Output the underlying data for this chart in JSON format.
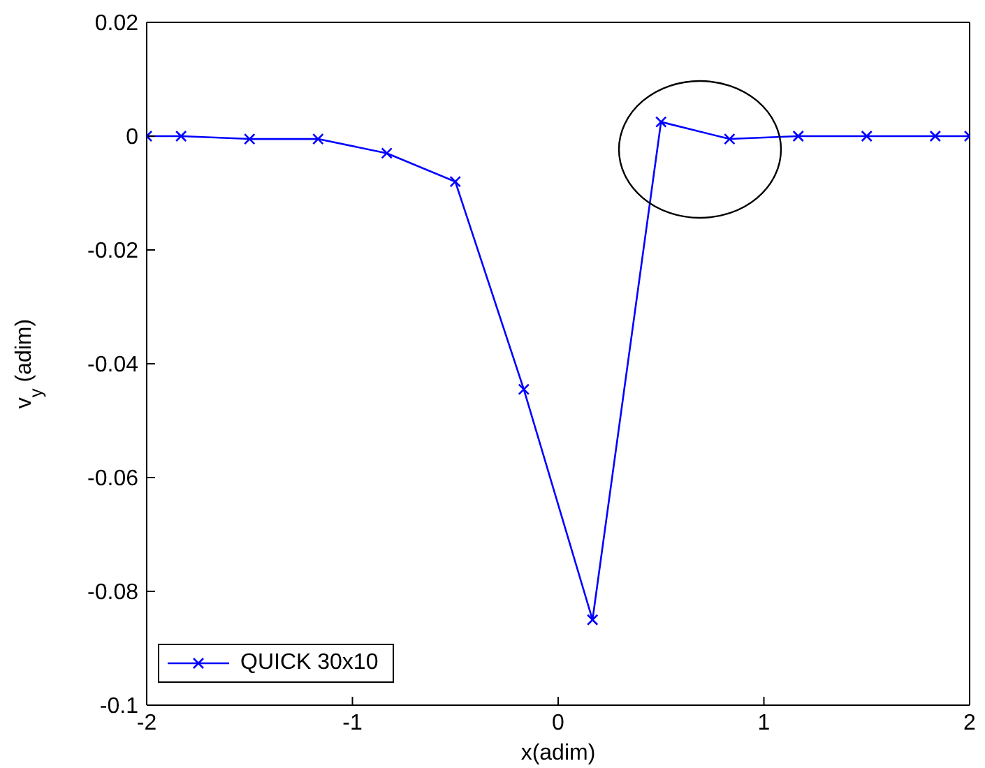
{
  "chart_data": {
    "type": "line",
    "xlabel": "x(adim)",
    "ylabel": "v$_{y}$ (adim)",
    "x": [
      -2,
      -1.833,
      -1.5,
      -1.167,
      -0.833,
      -0.5,
      -0.167,
      0.167,
      0.5,
      0.833,
      1.167,
      1.5,
      1.833,
      2
    ],
    "series": [
      {
        "name": "QUICK 30x10",
        "color": "#0000ff",
        "values": [
          0,
          0,
          -0.0005,
          -0.0005,
          -0.003,
          -0.008,
          -0.0445,
          -0.085,
          0.0025,
          -0.0005,
          0,
          0,
          0,
          0
        ]
      }
    ],
    "xlim": [
      -2,
      2
    ],
    "xticks": [
      -2,
      -1,
      0,
      1,
      2
    ],
    "ylim": [
      -0.1,
      0.02
    ],
    "yticks": [
      -0.1,
      -0.08,
      -0.06,
      -0.04,
      -0.02,
      0,
      0.02
    ],
    "grid": false,
    "legend": "bottom left",
    "marker": "cross",
    "line_style": "solid"
  }
}
